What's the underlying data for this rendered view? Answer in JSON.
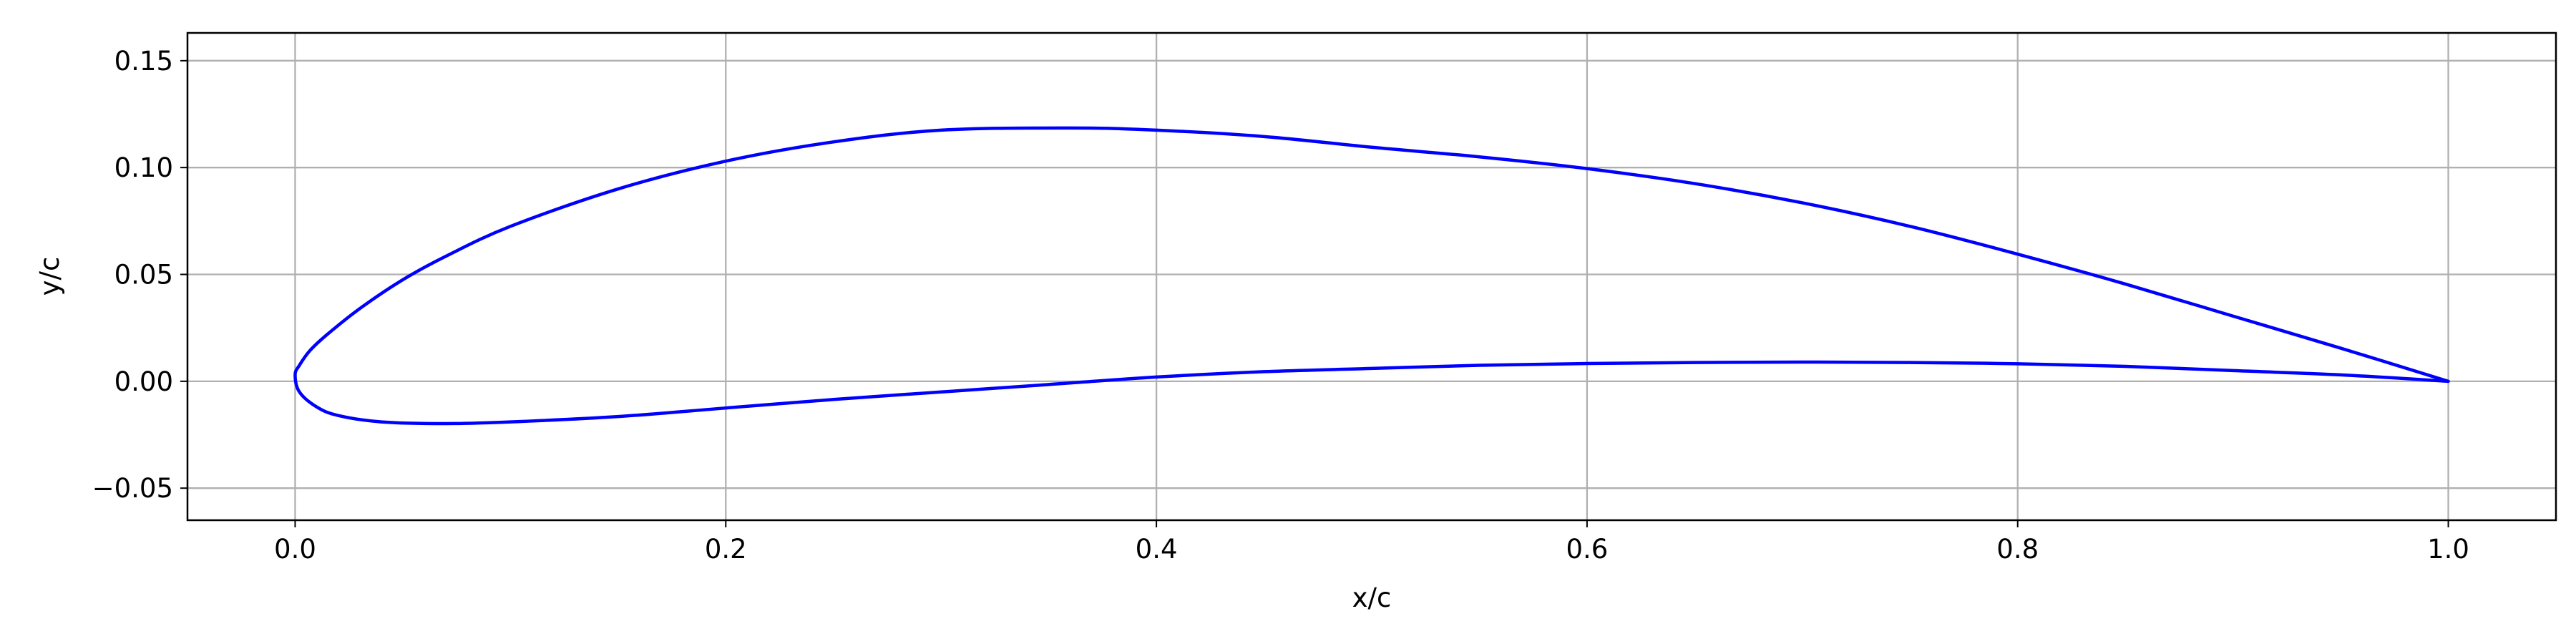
{
  "chart_data": {
    "type": "line",
    "title": "",
    "xlabel": "x/c",
    "ylabel": "y/c",
    "xlim": [
      -0.05,
      1.05
    ],
    "ylim": [
      -0.065,
      0.163
    ],
    "xticks": [
      0.0,
      0.2,
      0.4,
      0.6,
      0.8,
      1.0
    ],
    "xtick_labels": [
      "0.0",
      "0.2",
      "0.4",
      "0.6",
      "0.8",
      "1.0"
    ],
    "yticks": [
      -0.05,
      0.0,
      0.05,
      0.1,
      0.15
    ],
    "ytick_labels": [
      "−0.05",
      "0.00",
      "0.05",
      "0.10",
      "0.15"
    ],
    "grid": true,
    "series": [
      {
        "color": "#0000ff",
        "x": [
          1.0,
          0.95,
          0.9,
          0.85,
          0.8,
          0.75,
          0.7,
          0.65,
          0.6,
          0.55,
          0.5,
          0.45,
          0.4,
          0.36,
          0.3,
          0.25,
          0.2,
          0.15,
          0.1,
          0.07,
          0.05,
          0.03,
          0.015,
          0.007,
          0.002,
          0.0,
          0.002,
          0.01,
          0.02,
          0.04,
          0.07,
          0.1,
          0.15,
          0.2,
          0.25,
          0.3,
          0.35,
          0.4,
          0.45,
          0.5,
          0.55,
          0.6,
          0.65,
          0.7,
          0.75,
          0.8,
          0.85,
          0.9,
          0.95,
          1.0
        ],
        "y": [
          0.0,
          0.0155,
          0.0305,
          0.0455,
          0.0595,
          0.0725,
          0.0835,
          0.0925,
          0.0995,
          0.105,
          0.1095,
          0.1145,
          0.1175,
          0.1185,
          0.1175,
          0.112,
          0.103,
          0.09,
          0.0725,
          0.0585,
          0.0475,
          0.034,
          0.022,
          0.0145,
          0.0075,
          0.003,
          -0.005,
          -0.012,
          -0.016,
          -0.019,
          -0.0198,
          -0.019,
          -0.0165,
          -0.0125,
          -0.0085,
          -0.005,
          -0.0015,
          0.002,
          0.0045,
          0.006,
          0.0075,
          0.0083,
          0.0088,
          0.009,
          0.0088,
          0.0082,
          0.007,
          0.005,
          0.003,
          0.0
        ]
      }
    ]
  }
}
